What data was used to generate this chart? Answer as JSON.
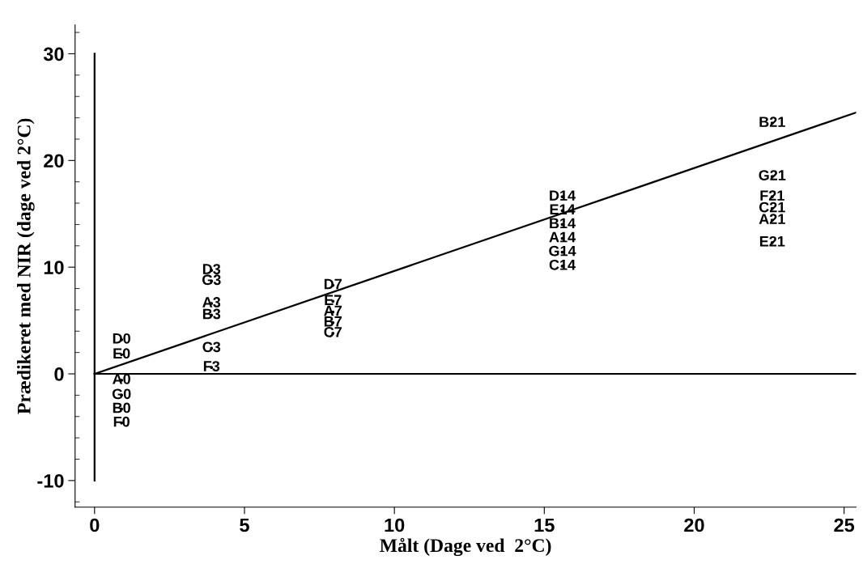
{
  "chart_data": {
    "type": "scatter",
    "xlabel": "Målt (Dage ved  2°C)",
    "ylabel": "Prædikeret med NIR (dage ved 2°C)",
    "xlim": [
      -0.65,
      25.4
    ],
    "ylim": [
      -12.5,
      32.7
    ],
    "xticks": [
      0,
      5,
      10,
      15,
      20,
      25
    ],
    "yticks": [
      -10,
      0,
      10,
      20,
      30
    ],
    "grid": false,
    "legend": false,
    "line_style": "solid",
    "series": [
      {
        "type": "line",
        "color": "#000000",
        "x": [
          0,
          0
        ],
        "values": [
          -10,
          30
        ]
      },
      {
        "type": "line",
        "color": "#000000",
        "x": [
          0,
          25.4
        ],
        "values": [
          0,
          0
        ]
      },
      {
        "type": "line",
        "color": "#000000",
        "x": [
          0,
          25.4
        ],
        "values": [
          0,
          24.5
        ]
      },
      {
        "color": "#000000",
        "marker": "circle",
        "x": [
          0.9,
          0.9,
          0.9,
          0.9,
          0.9,
          0.9,
          3.9,
          3.9,
          3.9,
          3.9,
          3.9,
          3.9,
          7.95,
          7.95,
          7.95,
          7.95,
          7.95,
          15.6,
          15.6,
          15.6,
          15.6,
          15.6,
          15.6,
          22.6,
          22.6,
          22.6,
          22.6,
          22.6,
          22.6
        ],
        "values": [
          3.2,
          1.8,
          -0.6,
          -2.0,
          -3.3,
          -4.6,
          9.7,
          8.7,
          6.6,
          5.5,
          2.4,
          0.6,
          8.3,
          6.8,
          5.8,
          4.8,
          3.8,
          16.6,
          15.3,
          14.0,
          12.7,
          11.4,
          10.1,
          23.5,
          18.5,
          16.6,
          15.5,
          14.4,
          12.3
        ],
        "value_labels": [
          "D0",
          "E0",
          "A0",
          "G0",
          "B0",
          "F0",
          "D3",
          "G3",
          "A3",
          "B3",
          "C3",
          "F3",
          "D7",
          "E7",
          "A7",
          "B7",
          "C7",
          "D14",
          "E14",
          "B14",
          "A14",
          "G14",
          "C14",
          "B21",
          "G21",
          "F21",
          "C21",
          "A21",
          "E21"
        ]
      }
    ]
  }
}
